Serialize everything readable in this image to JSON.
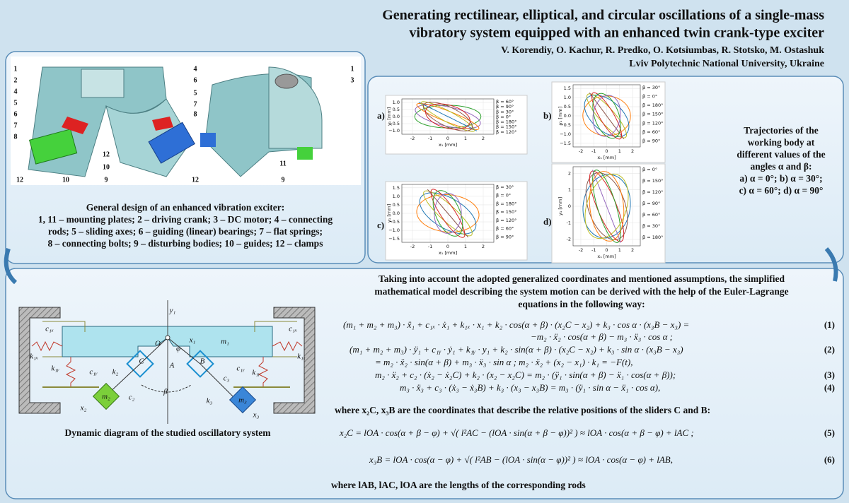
{
  "header": {
    "title_lines": [
      "Generating rectilinear, elliptical, and circular oscillations of a single-mass",
      "vibratory system equipped with an enhanced twin crank-type exciter"
    ],
    "authors": "V. Korendiy, O. Kachur, R. Predko, O. Kotsiumbas, R. Stotsko, M. Ostashuk",
    "affiliation": "Lviv Polytechnic National University, Ukraine"
  },
  "design": {
    "part_labels": [
      "1",
      "2",
      "4",
      "5",
      "6",
      "7",
      "8",
      "12",
      "10",
      "9",
      "12",
      "10",
      "4",
      "6",
      "5",
      "7",
      "8",
      "12",
      "1",
      "3",
      "11",
      "9"
    ],
    "caption_title": "General design of an enhanced vibration exciter:",
    "caption_lines": [
      "1, 11 – mounting plates; 2 – driving crank; 3 – DC motor; 4 – connecting",
      "rods; 5 – sliding axes; 6 – guiding (linear) bearings; 7 – flat springs;",
      "8 – connecting bolts; 9 – disturbing bodies; 10 – guides; 12 – clamps"
    ]
  },
  "trajectories": {
    "caption_lines": [
      "Trajectories of the",
      "working body at",
      "different values of the",
      "angles α and β:",
      "a) α = 0°; b) α = 30°;",
      "c) α = 60°; d) α = 90°"
    ],
    "plots": [
      {
        "label": "a)",
        "x_label": "x₁ [mm]",
        "y_label": "y₁ [mm]",
        "xlim": [
          -2.6,
          2.6
        ],
        "ylim": [
          -1.25,
          1.25
        ],
        "xticks": [
          -2,
          -1,
          0,
          1,
          2
        ],
        "yticks": [
          {
            "value": -1,
            "label": "−1.0"
          },
          {
            "value": -0.5,
            "label": "−0.5"
          },
          {
            "value": 0,
            "label": "0.0"
          },
          {
            "value": 0.5,
            "label": "0.5"
          },
          {
            "value": 1,
            "label": "1.0"
          }
        ],
        "series": [
          {
            "name": "β = 60°",
            "color": "#2ca02c"
          },
          {
            "name": "β = 90°",
            "color": "#9467bd"
          },
          {
            "name": "β = 30°",
            "color": "#ff7f0e"
          },
          {
            "name": "β = 0°",
            "color": "#1f77b4"
          },
          {
            "name": "β = 180°",
            "color": "#bcbd22"
          },
          {
            "name": "β = 150°",
            "color": "#8c564b"
          },
          {
            "name": "β = 120°",
            "color": "#d62728"
          }
        ]
      },
      {
        "label": "b)",
        "x_label": "x₁ [mm]",
        "y_label": "y₁ [mm]",
        "xlim": [
          -2.6,
          2.6
        ],
        "ylim": [
          -1.7,
          1.7
        ],
        "xticks": [
          -2,
          -1,
          0,
          1,
          2
        ],
        "yticks": [
          {
            "value": -1.5,
            "label": "−1.5"
          },
          {
            "value": -1,
            "label": "−1.0"
          },
          {
            "value": -0.5,
            "label": "−0.5"
          },
          {
            "value": 0,
            "label": "0.0"
          },
          {
            "value": 0.5,
            "label": "0.5"
          },
          {
            "value": 1,
            "label": "1.0"
          },
          {
            "value": 1.5,
            "label": "1.5"
          }
        ],
        "series": [
          {
            "name": "β = 30°",
            "color": "#ff7f0e"
          },
          {
            "name": "β = 0°",
            "color": "#1f77b4"
          },
          {
            "name": "β = 180°",
            "color": "#bcbd22"
          },
          {
            "name": "β = 150°",
            "color": "#8c564b"
          },
          {
            "name": "β = 120°",
            "color": "#d62728"
          },
          {
            "name": "β = 60°",
            "color": "#2ca02c"
          },
          {
            "name": "β = 90°",
            "color": "#9467bd"
          }
        ]
      },
      {
        "label": "c)",
        "x_label": "x₁ [mm]",
        "y_label": "y₁ [mm]",
        "xlim": [
          -2.6,
          2.6
        ],
        "ylim": [
          -1.7,
          1.7
        ],
        "xticks": [
          -2,
          -1,
          0,
          1,
          2
        ],
        "yticks": [
          {
            "value": -1.5,
            "label": "−1.5"
          },
          {
            "value": -1,
            "label": "−1.0"
          },
          {
            "value": -0.5,
            "label": "−0.5"
          },
          {
            "value": 0,
            "label": "0.0"
          },
          {
            "value": 0.5,
            "label": "0.5"
          },
          {
            "value": 1,
            "label": "1.0"
          },
          {
            "value": 1.5,
            "label": "1.5"
          }
        ],
        "series": [
          {
            "name": "β = 30°",
            "color": "#ff7f0e"
          },
          {
            "name": "β = 0°",
            "color": "#1f77b4"
          },
          {
            "name": "β = 180°",
            "color": "#bcbd22"
          },
          {
            "name": "β = 150°",
            "color": "#8c564b"
          },
          {
            "name": "β = 120°",
            "color": "#d62728"
          },
          {
            "name": "β = 60°",
            "color": "#2ca02c"
          },
          {
            "name": "β = 90°",
            "color": "#9467bd"
          }
        ]
      },
      {
        "label": "d)",
        "x_label": "x₁ [mm]",
        "y_label": "y₁ [mm]",
        "xlim": [
          -2.6,
          2.6
        ],
        "ylim": [
          -2.4,
          2.4
        ],
        "xticks": [
          -2,
          -1,
          0,
          1,
          2
        ],
        "yticks": [
          -2,
          -1,
          0,
          1,
          2
        ],
        "series": [
          {
            "name": "β = 0°",
            "color": "#1f77b4"
          },
          {
            "name": "β = 150°",
            "color": "#8c564b"
          },
          {
            "name": "β = 120°",
            "color": "#d62728"
          },
          {
            "name": "β = 90°",
            "color": "#9467bd"
          },
          {
            "name": "β = 60°",
            "color": "#2ca02c"
          },
          {
            "name": "β = 30°",
            "color": "#ff7f0e"
          },
          {
            "name": "β = 180°",
            "color": "#bcbd22"
          }
        ]
      }
    ]
  },
  "model": {
    "intro_lines": [
      "Taking into account the adopted generalized coordinates and mentioned assumptions, the simplified",
      "mathematical model describing the system motion can be derived with the help of the Euler-Lagrange",
      "equations in the following way:"
    ],
    "equations": [
      {
        "lines": [
          "(m₁ + m₂ + m₃) · ẍ₁ + c₁ₓ · ẋ₁ + k₁ₓ · x₁ + k₂ · cos(α + β) · (x₂C − x₂) + k₃ · cos α · (x₃B − x₃) =",
          "−m₂ · ẍ₂ · cos(α + β) − m₃ · ẍ₃ · cos α ;"
        ],
        "number": "(1)"
      },
      {
        "lines": [
          "(m₁ + m₂ + m₃) · ÿ₁ + c₁ᵧ · ẏ₁ + k₁ᵧ · y₁ + k₂ · sin(α + β) · (x₂C − x₂) + k₃ · sin α · (x₃B − x₃)",
          "= m₂ · ẍ₂ · sin(α + β) + m₃ · ẍ₃ · sin α ; m₂ · ẍ₂ + (x₂ − x₁) · k₁ = −F(t),"
        ],
        "number": "(2)"
      },
      {
        "lines": [
          "m₂ · ẍ₂ + c₂ · (ẋ₂ − ẋ₂C) + k₂ · (x₂ − x₂C) = m₂ · (ÿ₁ · sin(α + β) − ẍ₁ · cos(α + β));"
        ],
        "number": "(3)"
      },
      {
        "lines": [
          "m₃ · ẍ₃ + c₃ · (ẋ₃ − ẋ₃B) + k₃ · (x₃ − x₃B) = m₃ · (ÿ₁ · sin α − ẍ₁ · cos α),"
        ],
        "number": "(4)"
      }
    ],
    "where_1": "where x₂C, x₃B are the coordinates that describe the relative positions of the sliders C and B:",
    "relations": [
      {
        "lines": [
          "x₂C = lOA · cos(α + β − φ) + √( l²AC − (lOA · sin(α + β − φ))² )  ≈  lOA · cos(α + β − φ) + lAC ;"
        ],
        "number": "(5)"
      },
      {
        "lines": [
          "x₃B = lOA · cos(α − φ) + √( l²AB − (lOA · sin(α − φ))² )  ≈  lOA · cos(α − φ) + lAB,"
        ],
        "number": "(6)"
      }
    ],
    "where_2": "where lAB, lAC, lOA are the lengths of the corresponding rods"
  },
  "diagram": {
    "labels": [
      "y₁",
      "m₁",
      "O",
      "x₁",
      "φ",
      "A",
      "C",
      "B",
      "k₂",
      "c₂",
      "m₂",
      "x₂",
      "β",
      "k₃",
      "c₃",
      "m₃",
      "x₃",
      "c₁ₓ",
      "k₁ₓ",
      "k₁ᵧ",
      "c₁ᵧ",
      "c₁ₓ",
      "k₁ₓ",
      "k₁ᵧ",
      "c₁ᵧ"
    ],
    "caption": "Dynamic diagram of the studied oscillatory system"
  }
}
